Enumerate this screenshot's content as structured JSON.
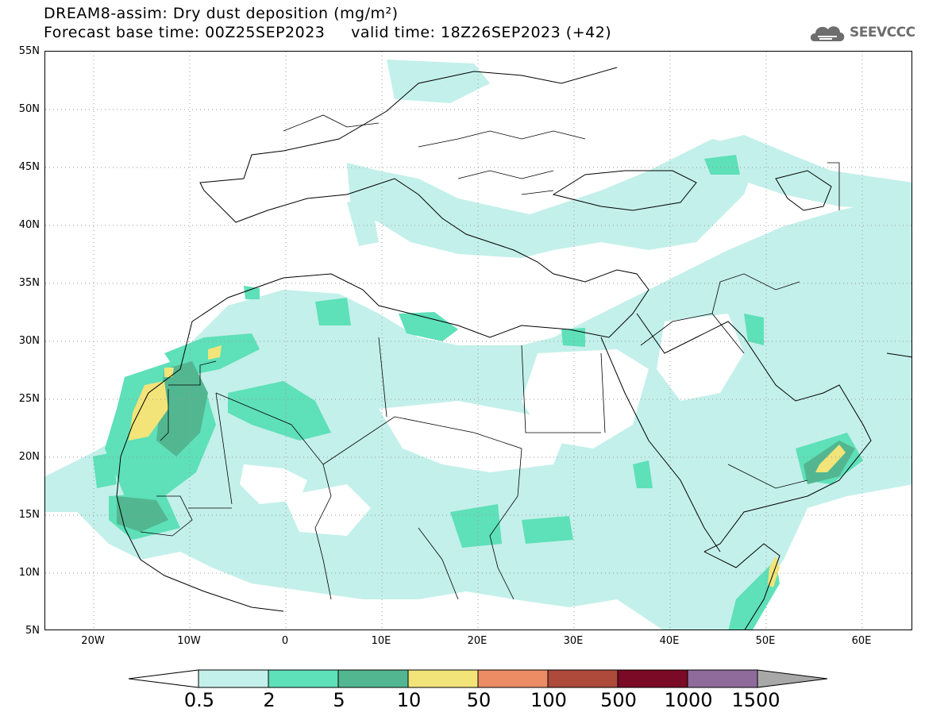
{
  "title": {
    "line1": "DREAM8-assim: Dry dust deposition (mg/m²)",
    "line2": "Forecast base time: 00Z25SEP2023     valid time: 18Z26SEP2023 (+42)"
  },
  "logo": {
    "text": "SEEVCCC",
    "icon": "cloud-icon"
  },
  "axes": {
    "lat_labels": [
      "55N",
      "50N",
      "45N",
      "40N",
      "35N",
      "30N",
      "25N",
      "20N",
      "15N",
      "10N",
      "5N"
    ],
    "lon_labels": [
      "20W",
      "10W",
      "0",
      "10E",
      "20E",
      "30E",
      "40E",
      "50E",
      "60E"
    ]
  },
  "colorbar": {
    "labels": [
      "0.5",
      "2",
      "5",
      "10",
      "50",
      "100",
      "500",
      "1000",
      "1500"
    ],
    "colors": [
      "#ffffff",
      "#c3f0ea",
      "#5ee0b8",
      "#52b791",
      "#f2e479",
      "#eb8c65",
      "#ad4a3c",
      "#7a0a25",
      "#8e6b9b",
      "#a8a8a8"
    ]
  }
}
